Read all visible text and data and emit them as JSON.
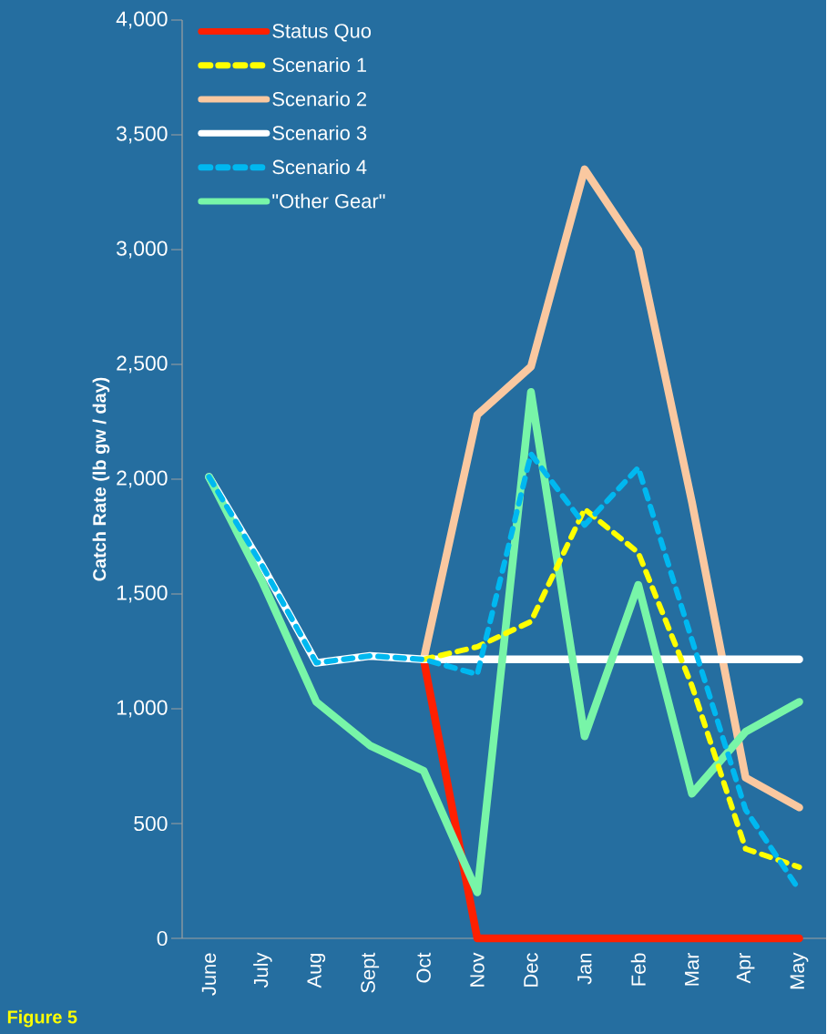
{
  "chart_data": {
    "type": "line",
    "ylabel": "Catch Rate (lb gw / day)",
    "categories": [
      "June",
      "July",
      "Aug",
      "Sept",
      "Oct",
      "Nov",
      "Dec",
      "Jan",
      "Feb",
      "Mar",
      "Apr",
      "May"
    ],
    "series": [
      {
        "name": "Status Quo",
        "color": "#ff2000",
        "line_style": "solid",
        "values": [
          null,
          null,
          null,
          null,
          1215,
          0,
          0,
          0,
          0,
          0,
          0,
          0
        ]
      },
      {
        "name": "Scenario 1",
        "color": "#ffff00",
        "line_style": "dashed",
        "values": [
          null,
          null,
          null,
          null,
          1215,
          1270,
          1380,
          1870,
          1680,
          1100,
          390,
          310
        ]
      },
      {
        "name": "Scenario 2",
        "color": "#fac8a0",
        "line_style": "solid",
        "values": [
          null,
          null,
          null,
          null,
          1215,
          2280,
          2490,
          3350,
          3000,
          1900,
          700,
          570
        ]
      },
      {
        "name": "Scenario 3",
        "color": "#ffffff",
        "line_style": "solid",
        "values": [
          2010,
          1620,
          1200,
          1230,
          1215,
          1215,
          1215,
          1215,
          1215,
          1215,
          1215,
          1215
        ]
      },
      {
        "name": "Scenario 4",
        "color": "#00b8f0",
        "line_style": "dashed",
        "values": [
          2010,
          1620,
          1200,
          1230,
          1215,
          1150,
          2110,
          1800,
          2050,
          1300,
          560,
          210
        ]
      },
      {
        "name": "\"Other Gear\"",
        "color": "#78f5a8",
        "line_style": "solid",
        "values": [
          2010,
          1550,
          1030,
          840,
          730,
          200,
          2380,
          880,
          1540,
          630,
          900,
          1030
        ]
      }
    ],
    "ylim": [
      0,
      4000
    ],
    "yticks": [
      0,
      500,
      {
        "value": 1000,
        "label": "1,000"
      },
      {
        "value": 1500,
        "label": "1,500"
      },
      {
        "value": 2000,
        "label": "2,000"
      },
      {
        "value": 2500,
        "label": "2,500"
      },
      {
        "value": 3000,
        "label": "3,000"
      },
      {
        "value": 3500,
        "label": "3,500"
      },
      {
        "value": 4000,
        "label": "4,000"
      }
    ],
    "legend": "top left",
    "annotations": [
      "Figure 5"
    ]
  }
}
